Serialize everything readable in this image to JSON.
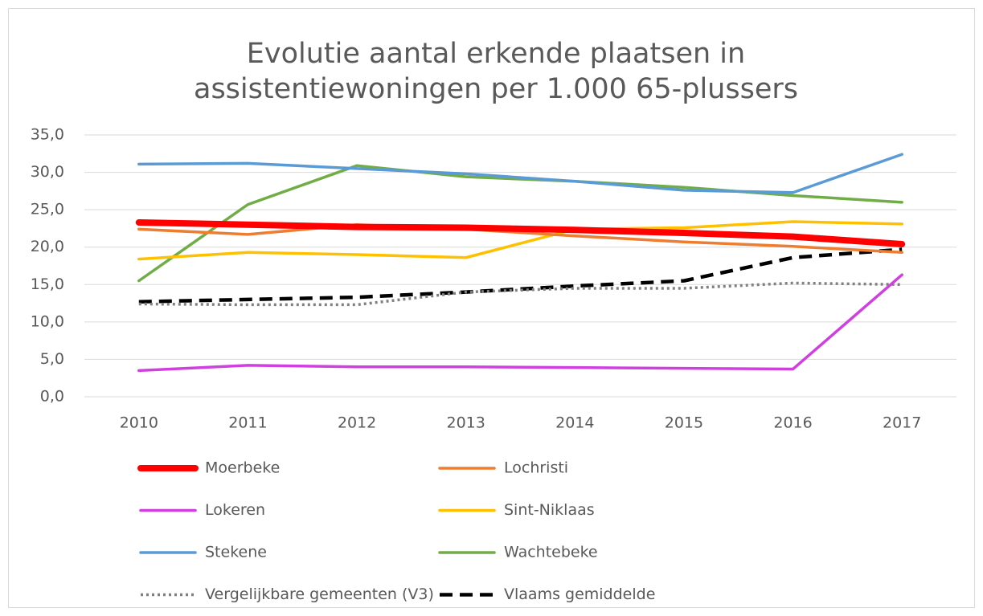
{
  "chart_data": {
    "type": "line",
    "title": [
      "Evolutie aantal erkende plaatsen in",
      "assistentiewoningen per 1.000 65-plussers"
    ],
    "categories": [
      "2010",
      "2011",
      "2012",
      "2013",
      "2014",
      "2015",
      "2016",
      "2017"
    ],
    "ylim": [
      0,
      35
    ],
    "yticks": [
      {
        "value": 0,
        "label": "0,0"
      },
      {
        "value": 5,
        "label": "5,0"
      },
      {
        "value": 10,
        "label": "10,0"
      },
      {
        "value": 15,
        "label": "15,0"
      },
      {
        "value": 20,
        "label": "20,0"
      },
      {
        "value": 25,
        "label": "25,0"
      },
      {
        "value": 30,
        "label": "30,0"
      },
      {
        "value": 35,
        "label": "35,0"
      }
    ],
    "grid": true,
    "legend": "bottom",
    "series": [
      {
        "name": "Moerbeke",
        "color": "#ff0000",
        "style": "solid",
        "values": [
          23.3,
          23.0,
          22.7,
          22.6,
          22.3,
          21.9,
          21.4,
          20.4
        ]
      },
      {
        "name": "Lochristi",
        "color": "#ed7d31",
        "style": "solid",
        "values": [
          22.4,
          21.7,
          23.0,
          22.4,
          21.5,
          20.7,
          20.1,
          19.3
        ]
      },
      {
        "name": "Lokeren",
        "color": "#d040e0",
        "style": "solid",
        "values": [
          3.5,
          4.2,
          4.0,
          4.0,
          3.9,
          3.8,
          3.7,
          16.3
        ]
      },
      {
        "name": "Sint-Niklaas",
        "color": "#ffc000",
        "style": "solid",
        "values": [
          18.4,
          19.3,
          19.0,
          18.6,
          22.4,
          22.6,
          23.4,
          23.1
        ]
      },
      {
        "name": "Stekene",
        "color": "#5b9bd5",
        "style": "solid",
        "values": [
          31.1,
          31.2,
          30.5,
          29.8,
          28.8,
          27.6,
          27.3,
          32.4
        ]
      },
      {
        "name": "Wachtebeke",
        "color": "#70ad47",
        "style": "solid",
        "values": [
          15.5,
          25.7,
          30.9,
          29.4,
          28.8,
          28.0,
          26.9,
          26.0
        ]
      },
      {
        "name": "Vergelijkbare gemeenten (V3)",
        "color": "#808080",
        "style": "dotted",
        "values": [
          12.4,
          12.3,
          12.3,
          14.0,
          14.5,
          14.5,
          15.2,
          15.0
        ]
      },
      {
        "name": "Vlaams gemiddelde",
        "color": "#000000",
        "style": "dashed",
        "values": [
          12.7,
          13.0,
          13.3,
          14.0,
          14.8,
          15.5,
          18.6,
          19.7
        ]
      }
    ]
  }
}
